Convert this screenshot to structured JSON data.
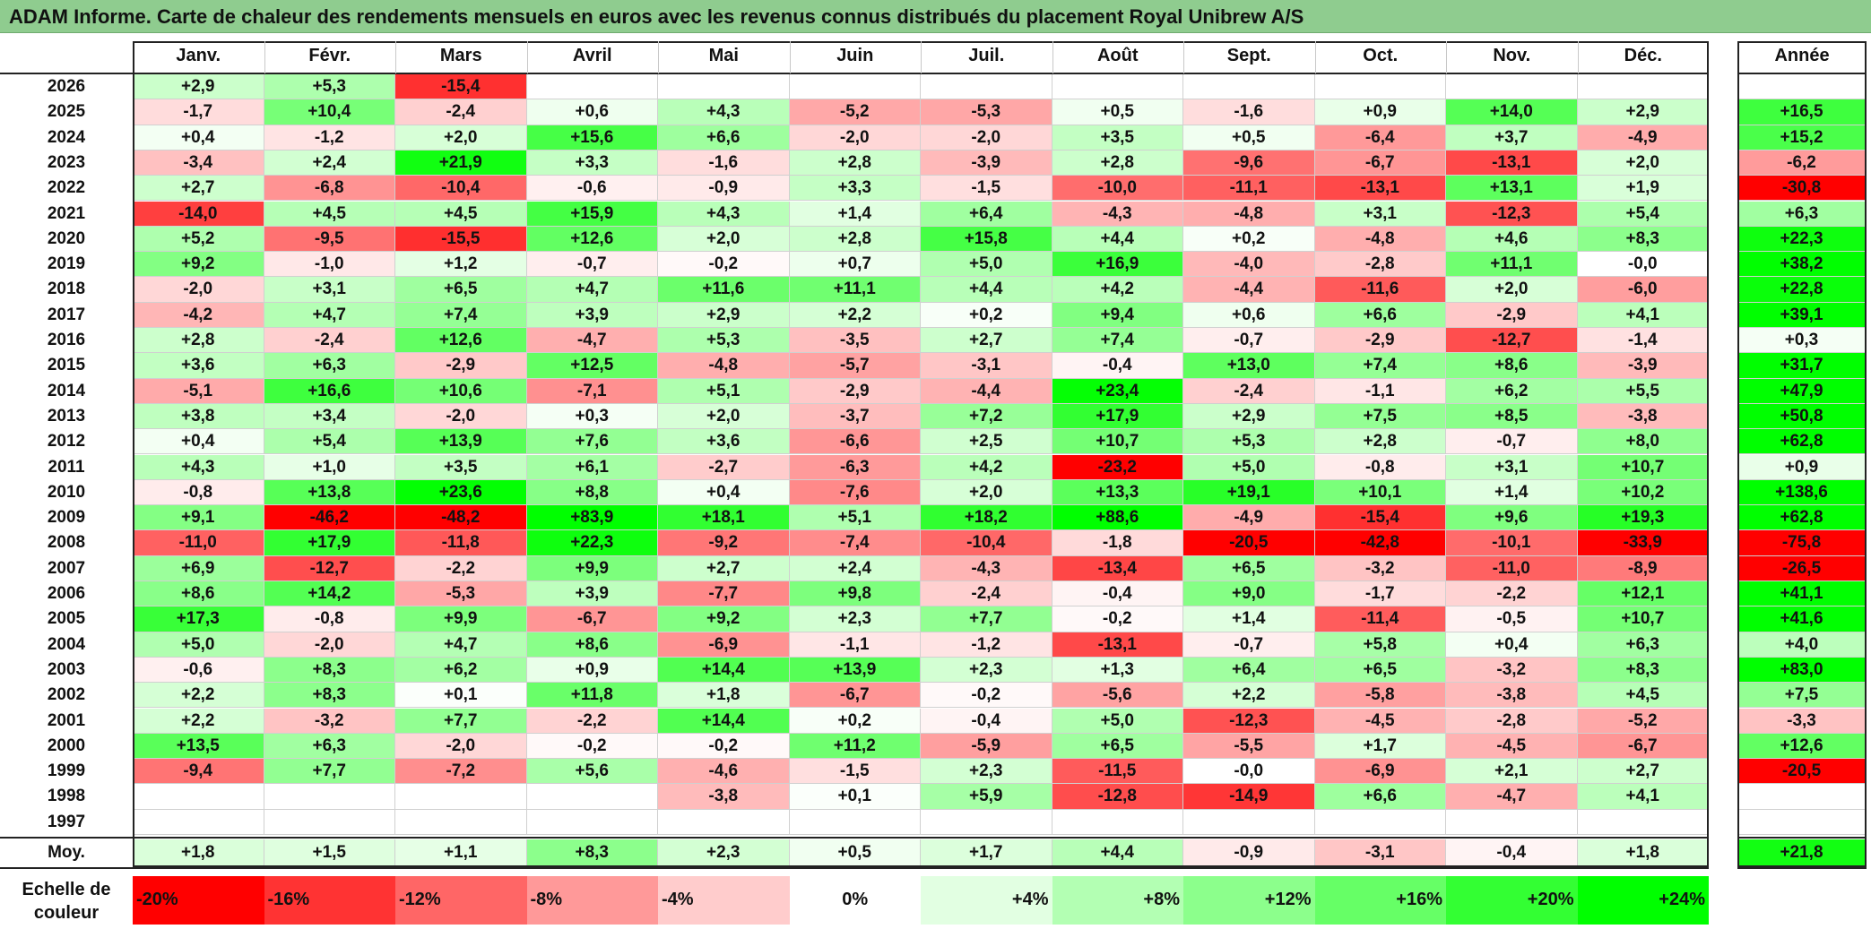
{
  "title": "ADAM Informe. Carte de chaleur des rendements mensuels en euros avec les revenus connus distribués du placement Royal Unibrew A/S",
  "chart_data": {
    "type": "heatmap",
    "title": "ADAM Informe. Carte de chaleur des rendements mensuels en euros avec les revenus connus distribués du placement Royal Unibrew A/S",
    "months": [
      "Janv.",
      "Févr.",
      "Mars",
      "Avril",
      "Mai",
      "Juin",
      "Juil.",
      "Août",
      "Sept.",
      "Oct.",
      "Nov.",
      "Déc."
    ],
    "year_header": "Année",
    "rows": [
      {
        "year": "2026",
        "values": [
          "+2,9",
          "+5,3",
          "-15,4",
          "",
          "",
          "",
          "",
          "",
          "",
          "",
          "",
          ""
        ],
        "annual": ""
      },
      {
        "year": "2025",
        "values": [
          "-1,7",
          "+10,4",
          "-2,4",
          "+0,6",
          "+4,3",
          "-5,2",
          "-5,3",
          "+0,5",
          "-1,6",
          "+0,9",
          "+14,0",
          "+2,9"
        ],
        "annual": "+16,5"
      },
      {
        "year": "2024",
        "values": [
          "+0,4",
          "-1,2",
          "+2,0",
          "+15,6",
          "+6,6",
          "-2,0",
          "-2,0",
          "+3,5",
          "+0,5",
          "-6,4",
          "+3,7",
          "-4,9"
        ],
        "annual": "+15,2"
      },
      {
        "year": "2023",
        "values": [
          "-3,4",
          "+2,4",
          "+21,9",
          "+3,3",
          "-1,6",
          "+2,8",
          "-3,9",
          "+2,8",
          "-9,6",
          "-6,7",
          "-13,1",
          "+2,0"
        ],
        "annual": "-6,2"
      },
      {
        "year": "2022",
        "values": [
          "+2,7",
          "-6,8",
          "-10,4",
          "-0,6",
          "-0,9",
          "+3,3",
          "-1,5",
          "-10,0",
          "-11,1",
          "-13,1",
          "+13,1",
          "+1,9"
        ],
        "annual": "-30,8"
      },
      {
        "year": "2021",
        "values": [
          "-14,0",
          "+4,5",
          "+4,5",
          "+15,9",
          "+4,3",
          "+1,4",
          "+6,4",
          "-4,3",
          "-4,8",
          "+3,1",
          "-12,3",
          "+5,4"
        ],
        "annual": "+6,3"
      },
      {
        "year": "2020",
        "values": [
          "+5,2",
          "-9,5",
          "-15,5",
          "+12,6",
          "+2,0",
          "+2,8",
          "+15,8",
          "+4,4",
          "+0,2",
          "-4,8",
          "+4,6",
          "+8,3"
        ],
        "annual": "+22,3"
      },
      {
        "year": "2019",
        "values": [
          "+9,2",
          "-1,0",
          "+1,2",
          "-0,7",
          "-0,2",
          "+0,7",
          "+5,0",
          "+16,9",
          "-4,0",
          "-2,8",
          "+11,1",
          "-0,0"
        ],
        "annual": "+38,2"
      },
      {
        "year": "2018",
        "values": [
          "-2,0",
          "+3,1",
          "+6,5",
          "+4,7",
          "+11,6",
          "+11,1",
          "+4,4",
          "+4,2",
          "-4,4",
          "-11,6",
          "+2,0",
          "-6,0"
        ],
        "annual": "+22,8"
      },
      {
        "year": "2017",
        "values": [
          "-4,2",
          "+4,7",
          "+7,4",
          "+3,9",
          "+2,9",
          "+2,2",
          "+0,2",
          "+9,4",
          "+0,6",
          "+6,6",
          "-2,9",
          "+4,1"
        ],
        "annual": "+39,1"
      },
      {
        "year": "2016",
        "values": [
          "+2,8",
          "-2,4",
          "+12,6",
          "-4,7",
          "+5,3",
          "-3,5",
          "+2,7",
          "+7,4",
          "-0,7",
          "-2,9",
          "-12,7",
          "-1,4"
        ],
        "annual": "+0,3"
      },
      {
        "year": "2015",
        "values": [
          "+3,6",
          "+6,3",
          "-2,9",
          "+12,5",
          "-4,8",
          "-5,7",
          "-3,1",
          "-0,4",
          "+13,0",
          "+7,4",
          "+8,6",
          "-3,9"
        ],
        "annual": "+31,7"
      },
      {
        "year": "2014",
        "values": [
          "-5,1",
          "+16,6",
          "+10,6",
          "-7,1",
          "+5,1",
          "-2,9",
          "-4,4",
          "+23,4",
          "-2,4",
          "-1,1",
          "+6,2",
          "+5,5"
        ],
        "annual": "+47,9"
      },
      {
        "year": "2013",
        "values": [
          "+3,8",
          "+3,4",
          "-2,0",
          "+0,3",
          "+2,0",
          "-3,7",
          "+7,2",
          "+17,9",
          "+2,9",
          "+7,5",
          "+8,5",
          "-3,8"
        ],
        "annual": "+50,8"
      },
      {
        "year": "2012",
        "values": [
          "+0,4",
          "+5,4",
          "+13,9",
          "+7,6",
          "+3,6",
          "-6,6",
          "+2,5",
          "+10,7",
          "+5,3",
          "+2,8",
          "-0,7",
          "+8,0"
        ],
        "annual": "+62,8"
      },
      {
        "year": "2011",
        "values": [
          "+4,3",
          "+1,0",
          "+3,5",
          "+6,1",
          "-2,7",
          "-6,3",
          "+4,2",
          "-23,2",
          "+5,0",
          "-0,8",
          "+3,1",
          "+10,7"
        ],
        "annual": "+0,9"
      },
      {
        "year": "2010",
        "values": [
          "-0,8",
          "+13,8",
          "+23,6",
          "+8,8",
          "+0,4",
          "-7,6",
          "+2,0",
          "+13,3",
          "+19,1",
          "+10,1",
          "+1,4",
          "+10,2"
        ],
        "annual": "+138,6"
      },
      {
        "year": "2009",
        "values": [
          "+9,1",
          "-46,2",
          "-48,2",
          "+83,9",
          "+18,1",
          "+5,1",
          "+18,2",
          "+88,6",
          "-4,9",
          "-15,4",
          "+9,6",
          "+19,3"
        ],
        "annual": "+62,8"
      },
      {
        "year": "2008",
        "values": [
          "-11,0",
          "+17,9",
          "-11,8",
          "+22,3",
          "-9,2",
          "-7,4",
          "-10,4",
          "-1,8",
          "-20,5",
          "-42,8",
          "-10,1",
          "-33,9"
        ],
        "annual": "-75,8"
      },
      {
        "year": "2007",
        "values": [
          "+6,9",
          "-12,7",
          "-2,2",
          "+9,9",
          "+2,7",
          "+2,4",
          "-4,3",
          "-13,4",
          "+6,5",
          "-3,2",
          "-11,0",
          "-8,9"
        ],
        "annual": "-26,5"
      },
      {
        "year": "2006",
        "values": [
          "+8,6",
          "+14,2",
          "-5,3",
          "+3,9",
          "-7,7",
          "+9,8",
          "-2,4",
          "-0,4",
          "+9,0",
          "-1,7",
          "-2,2",
          "+12,1"
        ],
        "annual": "+41,1"
      },
      {
        "year": "2005",
        "values": [
          "+17,3",
          "-0,8",
          "+9,9",
          "-6,7",
          "+9,2",
          "+2,3",
          "+7,7",
          "-0,2",
          "+1,4",
          "-11,4",
          "-0,5",
          "+10,7"
        ],
        "annual": "+41,6"
      },
      {
        "year": "2004",
        "values": [
          "+5,0",
          "-2,0",
          "+4,7",
          "+8,6",
          "-6,9",
          "-1,1",
          "-1,2",
          "-13,1",
          "-0,7",
          "+5,8",
          "+0,4",
          "+6,3"
        ],
        "annual": "+4,0"
      },
      {
        "year": "2003",
        "values": [
          "-0,6",
          "+8,3",
          "+6,2",
          "+0,9",
          "+14,4",
          "+13,9",
          "+2,3",
          "+1,3",
          "+6,4",
          "+6,5",
          "-3,2",
          "+8,3"
        ],
        "annual": "+83,0"
      },
      {
        "year": "2002",
        "values": [
          "+2,2",
          "+8,3",
          "+0,1",
          "+11,8",
          "+1,8",
          "-6,7",
          "-0,2",
          "-5,6",
          "+2,2",
          "-5,8",
          "-3,8",
          "+4,5"
        ],
        "annual": "+7,5"
      },
      {
        "year": "2001",
        "values": [
          "+2,2",
          "-3,2",
          "+7,7",
          "-2,2",
          "+14,4",
          "+0,2",
          "-0,4",
          "+5,0",
          "-12,3",
          "-4,5",
          "-2,8",
          "-5,2"
        ],
        "annual": "-3,3"
      },
      {
        "year": "2000",
        "values": [
          "+13,5",
          "+6,3",
          "-2,0",
          "-0,2",
          "-0,2",
          "+11,2",
          "-5,9",
          "+6,5",
          "-5,5",
          "+1,7",
          "-4,5",
          "-6,7"
        ],
        "annual": "+12,6"
      },
      {
        "year": "1999",
        "values": [
          "-9,4",
          "+7,7",
          "-7,2",
          "+5,6",
          "-4,6",
          "-1,5",
          "+2,3",
          "-11,5",
          "-0,0",
          "-6,9",
          "+2,1",
          "+2,7"
        ],
        "annual": "-20,5"
      },
      {
        "year": "1998",
        "values": [
          "",
          "",
          "",
          "",
          "-3,8",
          "+0,1",
          "+5,9",
          "-12,8",
          "-14,9",
          "+6,6",
          "-4,7",
          "+4,1"
        ],
        "annual": ""
      },
      {
        "year": "1997",
        "values": [
          "",
          "",
          "",
          "",
          "",
          "",
          "",
          "",
          "",
          "",
          "",
          ""
        ],
        "annual": ""
      }
    ],
    "average": {
      "label": "Moy.",
      "values": [
        "+1,8",
        "+1,5",
        "+1,1",
        "+8,3",
        "+2,3",
        "+0,5",
        "+1,7",
        "+4,4",
        "-0,9",
        "-3,1",
        "-0,4",
        "+1,8"
      ],
      "annual": "+21,8"
    },
    "color_scale": {
      "label": "Echelle de couleur",
      "stops": [
        "-20%",
        "-16%",
        "-12%",
        "-8%",
        "-4%",
        "0%",
        "+4%",
        "+8%",
        "+12%",
        "+16%",
        "+20%",
        "+24%"
      ],
      "stop_values": [
        -20,
        -16,
        -12,
        -8,
        -4,
        0,
        4,
        8,
        12,
        16,
        20,
        24
      ],
      "colors": [
        "#ff0000",
        "#ff3333",
        "#ff6666",
        "#ff9999",
        "#ffcccc",
        "#ffffff",
        "#e2ffe2",
        "#b3ffb3",
        "#8cff8c",
        "#66ff66",
        "#33ff33",
        "#00ff00"
      ]
    }
  }
}
